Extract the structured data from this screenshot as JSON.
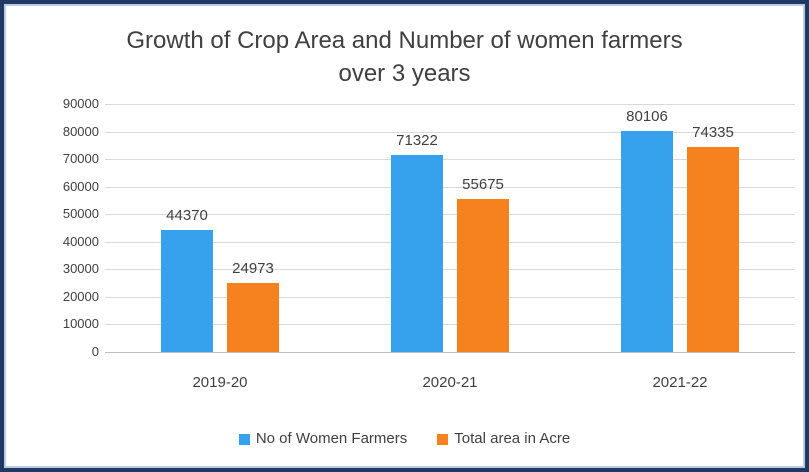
{
  "chart": {
    "title_line1": "Growth of Crop Area and Number of women farmers",
    "title_line2": "over 3 years"
  },
  "chart_data": {
    "type": "bar",
    "title": "Growth of Crop Area and Number of women farmers over 3 years",
    "categories": [
      "2019-20",
      "2020-21",
      "2021-22"
    ],
    "series": [
      {
        "name": "No of Women Farmers",
        "color": "#36A2EE",
        "values": [
          44370,
          71322,
          80106
        ]
      },
      {
        "name": "Total area in Acre",
        "color": "#F5821F",
        "values": [
          24973,
          55675,
          74335
        ]
      }
    ],
    "xlabel": "",
    "ylabel": "",
    "ylim": [
      0,
      90000
    ],
    "ytick_step": 10000,
    "yticks": [
      "0",
      "10000",
      "20000",
      "30000",
      "40000",
      "50000",
      "60000",
      "70000",
      "80000",
      "90000"
    ],
    "grid": "horizontal",
    "legend_position": "bottom",
    "data_labels": true
  },
  "colors": {
    "frame_border": "#1F3864",
    "frame_inner_border": "#B9CBE5",
    "gridline": "#D9D9D9",
    "axis_line": "#BFBFBF",
    "text": "#404040",
    "background": "#FFFFFF"
  }
}
